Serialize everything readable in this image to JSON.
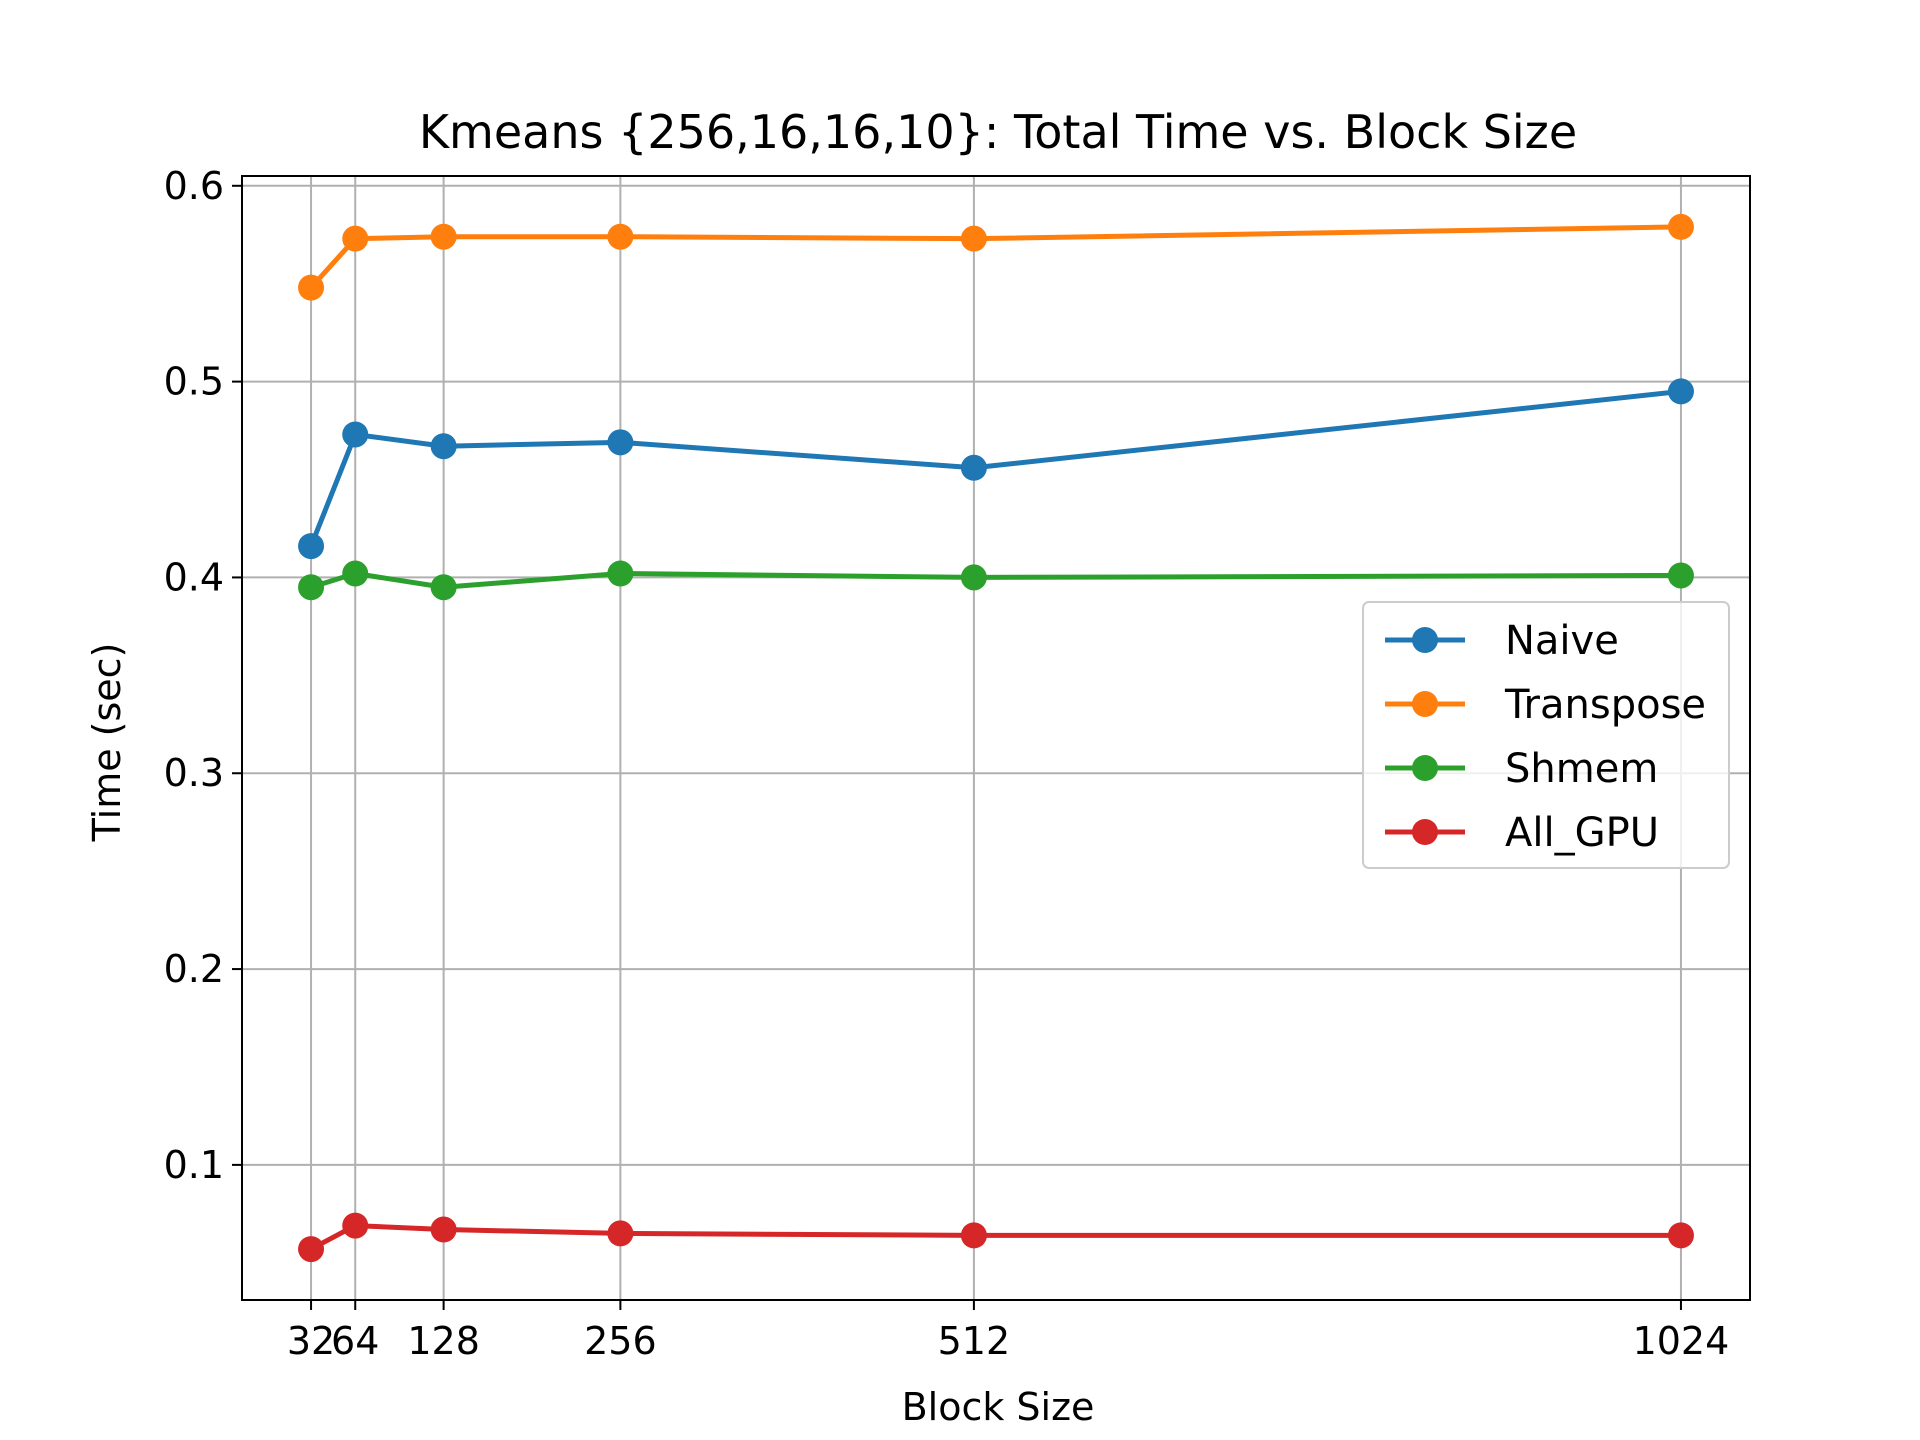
{
  "chart_data": {
    "type": "line",
    "title": "Kmeans {256,16,16,10}: Total Time vs. Block Size",
    "xlabel": "Block Size",
    "ylabel": "Time (sec)",
    "x": [
      32,
      64,
      128,
      256,
      512,
      1024
    ],
    "xticks": [
      "32",
      "64",
      "128",
      "256",
      "512",
      "1024"
    ],
    "yticks": [
      "0.1",
      "0.2",
      "0.3",
      "0.4",
      "0.5",
      "0.6"
    ],
    "ytick_values": [
      0.1,
      0.2,
      0.3,
      0.4,
      0.5,
      0.6
    ],
    "xlim": [
      -18,
      1074
    ],
    "ylim": [
      0.031,
      0.605
    ],
    "grid": true,
    "legend_position": "center-right",
    "series": [
      {
        "name": "Naive",
        "color": "#1f77b4",
        "values": [
          0.416,
          0.473,
          0.467,
          0.469,
          0.456,
          0.495
        ]
      },
      {
        "name": "Transpose",
        "color": "#ff7f0e",
        "values": [
          0.548,
          0.573,
          0.574,
          0.574,
          0.573,
          0.579
        ]
      },
      {
        "name": "Shmem",
        "color": "#2ca02c",
        "values": [
          0.395,
          0.402,
          0.395,
          0.402,
          0.4,
          0.401
        ]
      },
      {
        "name": "All_GPU",
        "color": "#d62728",
        "values": [
          0.057,
          0.069,
          0.067,
          0.065,
          0.064,
          0.064
        ]
      }
    ]
  }
}
